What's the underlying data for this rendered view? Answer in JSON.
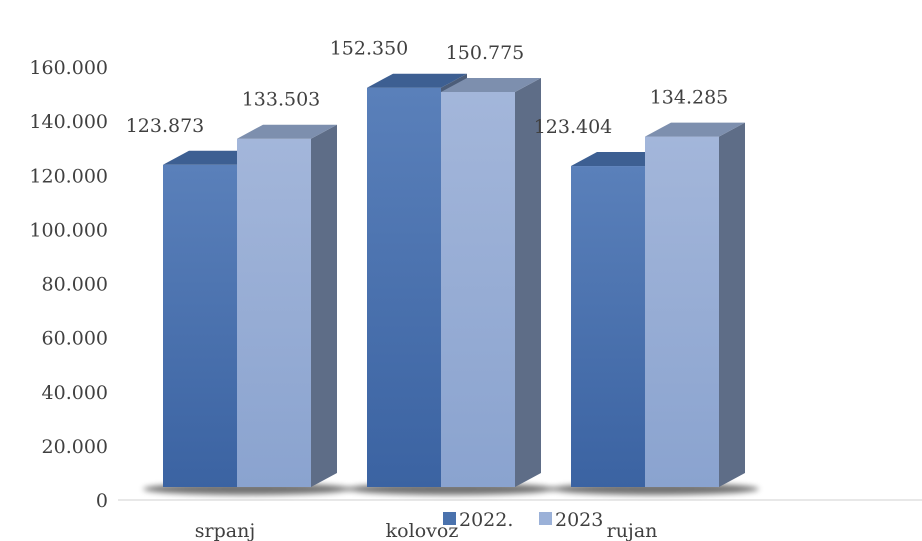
{
  "chart_data": {
    "type": "bar",
    "title": "",
    "xlabel": "",
    "ylabel": "",
    "categories": [
      "srpanj",
      "kolovoz",
      "rujan"
    ],
    "series": [
      {
        "name": "2022.",
        "values": [
          123.873,
          152.35,
          123.404
        ],
        "labels": [
          "123.873",
          "152.350",
          "123.404"
        ]
      },
      {
        "name": "2023",
        "values": [
          133.503,
          150.775,
          134.285
        ],
        "labels": [
          "133.503",
          "150.775",
          "134.285"
        ]
      }
    ],
    "ylim": [
      0,
      160
    ],
    "yticks": [
      "0",
      "20.000",
      "40.000",
      "60.000",
      "80.000",
      "100.000",
      "120.000",
      "140.000",
      "160.000"
    ],
    "grid": false,
    "legend_position": "bottom",
    "colors": {
      "2022.": "#4a72ad",
      "2023": "#9bb1d8"
    }
  }
}
